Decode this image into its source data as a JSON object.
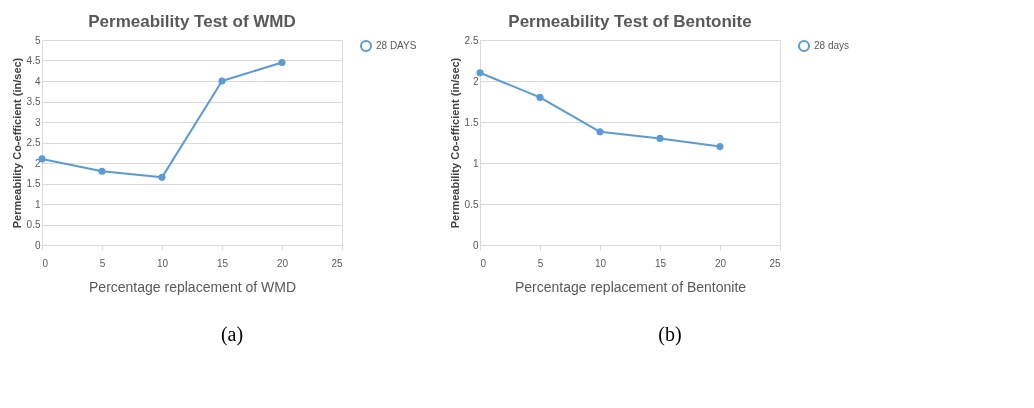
{
  "chart_data": [
    {
      "type": "line",
      "title": "Permeability Test of WMD",
      "xlabel": "Percentage replacement of WMD",
      "ylabel": "Permeability Co-efficient (in/sec)",
      "x": [
        0,
        5,
        10,
        15,
        20
      ],
      "xlim": [
        0,
        25
      ],
      "xticks": [
        0,
        5,
        10,
        15,
        20,
        25
      ],
      "ylim": [
        0,
        5
      ],
      "yticks": [
        0,
        0.5,
        1,
        1.5,
        2,
        2.5,
        3,
        3.5,
        4,
        4.5,
        5
      ],
      "series": [
        {
          "name": "28 DAYS",
          "color": "#5b9bd5",
          "values": [
            2.1,
            1.8,
            1.65,
            4.0,
            4.45
          ]
        }
      ],
      "marker": "circle",
      "line_style": "solid",
      "grid": "y",
      "legend": "right",
      "annotations": [
        "(a)"
      ]
    },
    {
      "type": "line",
      "title": "Permeability Test of Bentonite",
      "xlabel": "Percentage replacement of Bentonite",
      "ylabel": "Permeability Co-efficient (in/sec)",
      "x": [
        0,
        5,
        10,
        15,
        20
      ],
      "xlim": [
        0,
        25
      ],
      "xticks": [
        0,
        5,
        10,
        15,
        20,
        25
      ],
      "ylim": [
        0,
        2.5
      ],
      "yticks": [
        0,
        0.5,
        1,
        1.5,
        2,
        2.5
      ],
      "series": [
        {
          "name": "28 days",
          "color": "#5b9bd5",
          "values": [
            2.1,
            1.8,
            1.38,
            1.3,
            1.2
          ]
        }
      ],
      "marker": "circle",
      "line_style": "solid",
      "grid": "y",
      "legend": "right",
      "annotations": [
        "(b)"
      ]
    }
  ]
}
